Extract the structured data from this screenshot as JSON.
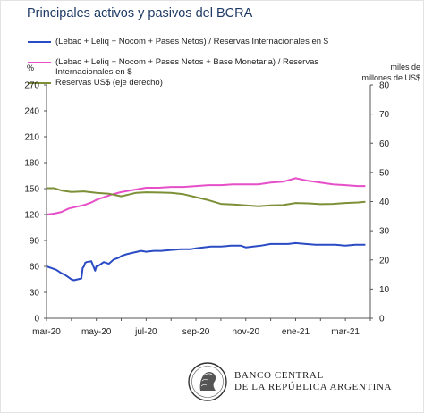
{
  "chart_data": {
    "type": "line",
    "title": "Principales activos y pasivos del BCRA",
    "y_left": {
      "unit": "%",
      "range": [
        0,
        270
      ],
      "ticks": [
        0,
        30,
        60,
        90,
        120,
        150,
        180,
        210,
        240,
        270
      ]
    },
    "y_right": {
      "label_line1": "miles de",
      "label_line2": "millones de US$",
      "range": [
        0,
        80
      ],
      "ticks": [
        0,
        10,
        20,
        30,
        40,
        50,
        60,
        70,
        80
      ]
    },
    "x_axis": {
      "range": [
        0,
        13
      ],
      "tick_labels": [
        {
          "x": 0,
          "label": "mar-20"
        },
        {
          "x": 2,
          "label": "may-20"
        },
        {
          "x": 4,
          "label": "jul-20"
        },
        {
          "x": 6,
          "label": "sep-20"
        },
        {
          "x": 8,
          "label": "nov-20"
        },
        {
          "x": 10,
          "label": "ene-21"
        },
        {
          "x": 12,
          "label": "mar-21"
        }
      ]
    },
    "series": [
      {
        "name": "(Lebac + Leliq + Nocom + Pases Netos) / Reservas Internacionales en $",
        "axis": "left",
        "color": "#2a4bc4",
        "x": [
          0,
          0.2,
          0.4,
          0.6,
          0.75,
          0.9,
          1.0,
          1.1,
          1.25,
          1.4,
          1.45,
          1.5,
          1.55,
          1.6,
          1.8,
          1.95,
          2.0,
          2.1,
          2.3,
          2.5,
          2.7,
          2.9,
          3.0,
          3.2,
          3.5,
          3.8,
          4.0,
          4.3,
          4.6,
          5.0,
          5.4,
          5.8,
          6.0,
          6.3,
          6.6,
          7.0,
          7.4,
          7.8,
          8.0,
          8.3,
          8.6,
          9.0,
          9.4,
          9.7,
          10.0,
          10.4,
          10.8,
          11.2,
          11.6,
          12.0,
          12.4,
          12.8
        ],
        "y": [
          60,
          58,
          56,
          52,
          50,
          47,
          45,
          44,
          45,
          46,
          58,
          60,
          64,
          65,
          66,
          55,
          60,
          61,
          65,
          63,
          68,
          70,
          72,
          74,
          76,
          78,
          77,
          78,
          78,
          79,
          80,
          80,
          81,
          82,
          83,
          83,
          84,
          84,
          82,
          83,
          84,
          86,
          86,
          86,
          87,
          86,
          85,
          85,
          85,
          84,
          85,
          85
        ]
      },
      {
        "name": "(Lebac + Leliq + Nocom + Pases Netos + Base Monetaria) / Reservas Internacionales en $",
        "axis": "left",
        "color": "#e64fc8",
        "x": [
          0,
          0.3,
          0.6,
          0.9,
          1.2,
          1.5,
          1.8,
          2.0,
          2.3,
          2.6,
          3.0,
          3.4,
          3.8,
          4.0,
          4.5,
          5.0,
          5.5,
          6.0,
          6.5,
          7.0,
          7.5,
          8.0,
          8.5,
          9.0,
          9.5,
          10.0,
          10.5,
          11.0,
          11.5,
          12.0,
          12.5,
          12.8
        ],
        "y": [
          120,
          121,
          123,
          127,
          129,
          131,
          134,
          137,
          140,
          143,
          146,
          148,
          150,
          151,
          151,
          152,
          152,
          153,
          154,
          154,
          155,
          155,
          155,
          157,
          158,
          162,
          159,
          157,
          155,
          154,
          153,
          153
        ]
      },
      {
        "name": "Reservas US$ (eje derecho)",
        "axis": "right",
        "color": "#7d8f37",
        "x": [
          0,
          0.3,
          0.6,
          1.0,
          1.5,
          2.0,
          2.5,
          3.0,
          3.3,
          3.6,
          4.0,
          4.5,
          5.0,
          5.5,
          6.0,
          6.5,
          7.0,
          7.5,
          8.0,
          8.5,
          9.0,
          9.5,
          10.0,
          10.5,
          11.0,
          11.5,
          12.0,
          12.5,
          12.8
        ],
        "y": [
          44.6,
          44.6,
          43.8,
          43.3,
          43.5,
          43.0,
          42.7,
          41.8,
          42.4,
          43.0,
          43.2,
          43.1,
          43.0,
          42.5,
          41.5,
          40.5,
          39.2,
          39.0,
          38.7,
          38.4,
          38.7,
          38.8,
          39.5,
          39.4,
          39.1,
          39.2,
          39.5,
          39.7,
          39.9
        ]
      }
    ]
  },
  "legend": {
    "item1": "(Lebac + Leliq + Nocom + Pases Netos) / Reservas Internacionales en $",
    "item2_line1": "(Lebac + Leliq + Nocom + Pases Netos + Base Monetaria) / Reservas",
    "item2_line2": "Internacionales en $",
    "item3": "Reservas US$ (eje derecho)"
  },
  "footer": {
    "bank_line1": "BANCO CENTRAL",
    "bank_line2": "DE LA REPÚBLICA ARGENTINA",
    "logo_icon": "bcra-effigy-logo-icon"
  }
}
